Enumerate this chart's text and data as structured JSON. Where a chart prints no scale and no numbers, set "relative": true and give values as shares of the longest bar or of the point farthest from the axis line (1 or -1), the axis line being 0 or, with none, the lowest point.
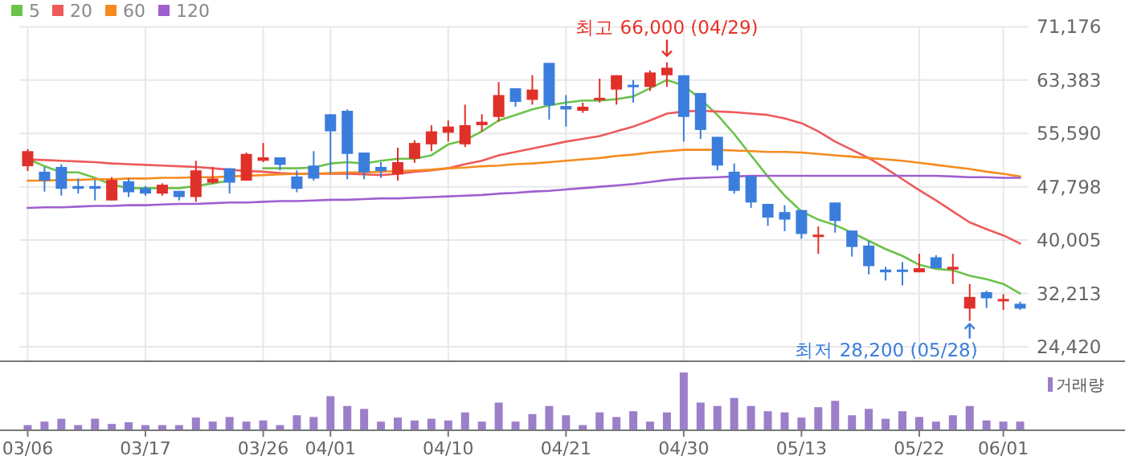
{
  "chart_data": [
    {
      "type": "candlestick",
      "categories": [
        null,
        null,
        null,
        null,
        null,
        null,
        null,
        null,
        null,
        null,
        null,
        null,
        null,
        null,
        null,
        null,
        null,
        null,
        null,
        null,
        null,
        null,
        null,
        null,
        null,
        null,
        null,
        null,
        null,
        null,
        null,
        null,
        null,
        null,
        null,
        null,
        null,
        null,
        null,
        null,
        null,
        null,
        null,
        null,
        null,
        null,
        null,
        null,
        null,
        null,
        null,
        null,
        null,
        null,
        null,
        null,
        null,
        null,
        null,
        null
      ],
      "ohlc": [
        [
          50800,
          53300,
          50100,
          53000
        ],
        [
          50000,
          50700,
          47100,
          48700
        ],
        [
          50700,
          51100,
          46500,
          47500
        ],
        [
          47900,
          49000,
          46800,
          47500
        ],
        [
          47900,
          48800,
          45800,
          47500
        ],
        [
          45800,
          49200,
          45800,
          48800
        ],
        [
          48600,
          49000,
          46300,
          47000
        ],
        [
          47600,
          47900,
          46500,
          46800
        ],
        [
          46800,
          48300,
          46500,
          48100
        ],
        [
          47200,
          47200,
          45800,
          46300
        ],
        [
          46300,
          51600,
          45600,
          50200
        ],
        [
          48400,
          50700,
          48200,
          49000
        ],
        [
          50500,
          50500,
          46800,
          48400
        ],
        [
          48700,
          52800,
          48700,
          52600
        ],
        [
          51600,
          54200,
          51400,
          52100
        ],
        [
          52100,
          52100,
          50200,
          51000
        ],
        [
          49300,
          50200,
          47000,
          47500
        ],
        [
          50900,
          53000,
          48700,
          49000
        ],
        [
          58400,
          58400,
          49700,
          55900
        ],
        [
          58900,
          59100,
          48900,
          52600
        ],
        [
          52800,
          52800,
          48900,
          49900
        ],
        [
          50700,
          51400,
          49100,
          50100
        ],
        [
          49600,
          53500,
          48700,
          51400
        ],
        [
          51900,
          54600,
          51300,
          54200
        ],
        [
          54000,
          56800,
          53000,
          55900
        ],
        [
          55700,
          57500,
          54400,
          56600
        ],
        [
          54000,
          59800,
          53600,
          56800
        ],
        [
          56800,
          58400,
          55900,
          57300
        ],
        [
          58000,
          63100,
          57300,
          61200
        ],
        [
          62200,
          62200,
          59500,
          60200
        ],
        [
          60500,
          64100,
          59800,
          62000
        ],
        [
          65900,
          65900,
          57600,
          59700
        ],
        [
          59600,
          61200,
          56600,
          59100
        ],
        [
          58900,
          60100,
          58600,
          59500
        ],
        [
          60500,
          63600,
          60100,
          60800
        ],
        [
          62000,
          64100,
          59800,
          64100
        ],
        [
          62700,
          63400,
          60100,
          62400
        ],
        [
          62400,
          64800,
          61800,
          64500
        ],
        [
          64100,
          66000,
          62400,
          65200
        ],
        [
          64100,
          64100,
          54400,
          58000
        ],
        [
          61500,
          61500,
          54800,
          56100
        ],
        [
          55100,
          55100,
          50200,
          50900
        ],
        [
          50000,
          51200,
          46800,
          47200
        ],
        [
          49400,
          49400,
          44700,
          45500
        ],
        [
          45300,
          45300,
          42100,
          43300
        ],
        [
          44100,
          45100,
          41300,
          43000
        ],
        [
          44400,
          44400,
          40200,
          40900
        ],
        [
          40600,
          42000,
          38000,
          40800
        ],
        [
          45500,
          45500,
          41100,
          42800
        ],
        [
          41400,
          41400,
          37600,
          39000
        ],
        [
          39200,
          39900,
          35000,
          36200
        ],
        [
          35700,
          36100,
          34100,
          35300
        ],
        [
          35700,
          36800,
          33400,
          35400
        ],
        [
          35300,
          38000,
          35300,
          35900
        ],
        [
          37500,
          37800,
          35900,
          35900
        ],
        [
          35700,
          38000,
          33600,
          36100
        ],
        [
          30000,
          33600,
          28200,
          31700
        ],
        [
          32400,
          32600,
          30100,
          31500
        ],
        [
          31100,
          32100,
          29800,
          31400
        ],
        [
          30700,
          31000,
          29800,
          30000
        ]
      ],
      "colors": [
        "#e0302a",
        "#3b7ddd",
        "#3b7ddd",
        "#3b7ddd",
        "#3b7ddd",
        "#e0302a",
        "#3b7ddd",
        "#3b7ddd",
        "#e0302a",
        "#3b7ddd",
        "#e0302a",
        "#e0302a",
        "#3b7ddd",
        "#e0302a",
        "#e0302a",
        "#3b7ddd",
        "#3b7ddd",
        "#3b7ddd",
        "#3b7ddd",
        "#3b7ddd",
        "#3b7ddd",
        "#3b7ddd",
        "#e0302a",
        "#e0302a",
        "#e0302a",
        "#e0302a",
        "#e0302a",
        "#e0302a",
        "#e0302a",
        "#3b7ddd",
        "#e0302a",
        "#3b7ddd",
        "#3b7ddd",
        "#e0302a",
        "#e0302a",
        "#e0302a",
        "#3b7ddd",
        "#e0302a",
        "#e0302a",
        "#3b7ddd",
        "#3b7ddd",
        "#3b7ddd",
        "#3b7ddd",
        "#3b7ddd",
        "#3b7ddd",
        "#3b7ddd",
        "#3b7ddd",
        "#e0302a",
        "#3b7ddd",
        "#3b7ddd",
        "#3b7ddd",
        "#3b7ddd",
        "#3b7ddd",
        "#e0302a",
        "#3b7ddd",
        "#e0302a",
        "#e0302a",
        "#3b7ddd",
        "#e0302a",
        "#3b7ddd"
      ],
      "series": [
        {
          "type": "line",
          "name": "5",
          "color": "#6cc24a",
          "values": [
            51900,
            50800,
            49900,
            49900,
            49100,
            48100,
            47600,
            47600,
            47600,
            47600,
            47900,
            48300,
            48700,
            null,
            50500,
            50500,
            50500,
            50600,
            51200,
            51400,
            51200,
            51600,
            51900,
            51900,
            52400,
            54000,
            54600,
            55900,
            57500,
            58300,
            59100,
            59700,
            60100,
            60400,
            60400,
            60600,
            61000,
            62200,
            63400,
            62600,
            60600,
            58300,
            55500,
            52400,
            49300,
            46500,
            44200,
            43000,
            42200,
            41100,
            39900,
            38700,
            37700,
            36400,
            35800,
            35600,
            34800,
            34300,
            33600,
            32200
          ]
        },
        {
          "type": "line",
          "name": "20",
          "color": "#ee5a5a",
          "values": [
            51800,
            51700,
            51600,
            51500,
            51400,
            51200,
            51100,
            51000,
            50900,
            50800,
            50700,
            50500,
            50300,
            50100,
            50000,
            49800,
            49700,
            49700,
            49700,
            49700,
            49600,
            49500,
            49700,
            50000,
            50200,
            50500,
            51100,
            51600,
            52400,
            52900,
            53400,
            53900,
            54400,
            54800,
            55200,
            55900,
            56600,
            57500,
            58500,
            58800,
            58900,
            58800,
            58700,
            58500,
            58300,
            57800,
            57100,
            55900,
            54400,
            53200,
            52000,
            50500,
            48900,
            47300,
            45800,
            44200,
            42600,
            41600,
            40700,
            39500
          ]
        },
        {
          "type": "line",
          "name": "60",
          "color": "#f68b1f",
          "values": [
            48700,
            48700,
            48800,
            48800,
            48900,
            48900,
            49000,
            49000,
            49100,
            49100,
            49200,
            49200,
            49300,
            49400,
            49500,
            49600,
            49700,
            49700,
            49800,
            49900,
            49900,
            50000,
            50100,
            50200,
            50300,
            50500,
            50600,
            50800,
            50900,
            51100,
            51200,
            51400,
            51600,
            51800,
            52000,
            52300,
            52500,
            52800,
            53000,
            53200,
            53200,
            53200,
            53100,
            53000,
            52900,
            52900,
            52800,
            52600,
            52400,
            52200,
            52000,
            51800,
            51600,
            51300,
            51000,
            50700,
            50400,
            50000,
            49700,
            49300
          ]
        },
        {
          "type": "line",
          "name": "120",
          "color": "#9e5fcf",
          "values": [
            44700,
            44800,
            44800,
            44900,
            45000,
            45000,
            45100,
            45100,
            45200,
            45300,
            45300,
            45400,
            45500,
            45500,
            45600,
            45700,
            45700,
            45800,
            45900,
            45900,
            46000,
            46100,
            46100,
            46200,
            46300,
            46400,
            46500,
            46600,
            46800,
            46900,
            47100,
            47200,
            47400,
            47600,
            47800,
            48000,
            48200,
            48500,
            48800,
            49000,
            49100,
            49200,
            49300,
            49400,
            49400,
            49400,
            49400,
            49400,
            49400,
            49400,
            49400,
            49400,
            49400,
            49400,
            49400,
            49300,
            49200,
            49200,
            49100,
            49100
          ]
        }
      ],
      "ylim": [
        22300,
        71176
      ],
      "yticks": [
        {
          "value": 24420,
          "label": "24,420"
        },
        {
          "value": 32213,
          "label": "32,213"
        },
        {
          "value": 40005,
          "label": "40,005"
        },
        {
          "value": 47798,
          "label": "47,798"
        },
        {
          "value": 55590,
          "label": "55,590"
        },
        {
          "value": 63383,
          "label": "63,383"
        },
        {
          "value": 71176,
          "label": "71,176"
        }
      ],
      "grid": true,
      "legend": "top left",
      "tick_labels": "y",
      "annotations": [
        {
          "text": "최고 66,000 (04/29)",
          "y": 66000
        },
        "최저 28,200 (05/28)"
      ]
    },
    {
      "type": "bar",
      "relative": true,
      "categories": [
        "03/06",
        null,
        null,
        null,
        null,
        null,
        null,
        "03/17",
        null,
        null,
        null,
        null,
        null,
        null,
        "03/26",
        null,
        null,
        null,
        "04/01",
        null,
        null,
        null,
        null,
        null,
        null,
        "04/10",
        null,
        null,
        null,
        null,
        null,
        null,
        "04/21",
        null,
        null,
        null,
        null,
        null,
        null,
        "04/30",
        null,
        null,
        null,
        null,
        null,
        null,
        "05/13",
        null,
        null,
        null,
        null,
        null,
        null,
        "05/22",
        null,
        null,
        null,
        null,
        "06/01",
        null
      ],
      "series": [
        {
          "name": "거래량",
          "color": "#9b7fc9",
          "values": [
            0.09,
            0.15,
            0.2,
            0.09,
            0.2,
            0.11,
            0.14,
            0.09,
            0.09,
            0.09,
            0.22,
            0.15,
            0.23,
            0.15,
            0.17,
            0.09,
            0.26,
            0.23,
            0.59,
            0.42,
            0.37,
            0.15,
            0.22,
            0.17,
            0.2,
            0.17,
            0.31,
            0.15,
            0.48,
            0.15,
            0.28,
            0.42,
            0.26,
            0.09,
            0.31,
            0.23,
            0.33,
            0.15,
            0.31,
            1,
            0.48,
            0.42,
            0.56,
            0.42,
            0.33,
            0.31,
            0.22,
            0.4,
            0.51,
            0.26,
            0.37,
            0.2,
            0.33,
            0.23,
            0.15,
            0.26,
            0.42,
            0.17,
            0.15,
            0.15
          ]
        }
      ],
      "legend": "top right"
    }
  ]
}
